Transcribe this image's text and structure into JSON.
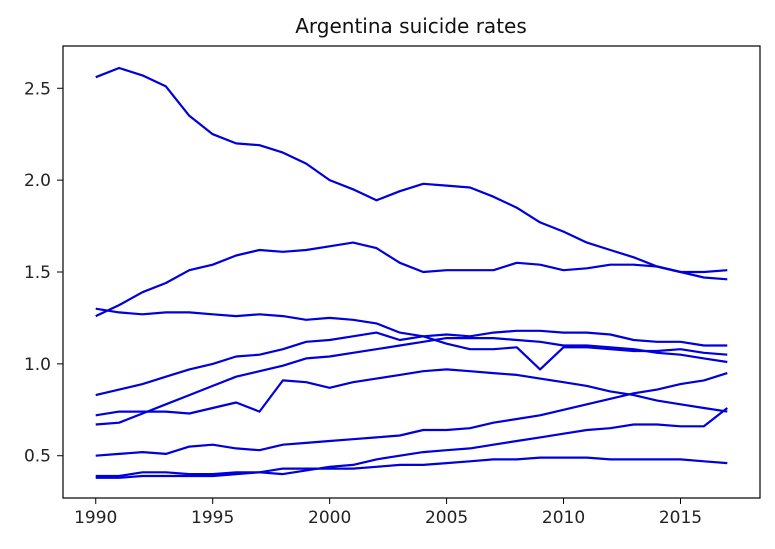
{
  "chart_data": {
    "type": "line",
    "title": "Argentina suicide rates",
    "xlabel": "",
    "ylabel": "",
    "xlim": [
      1988.6,
      2018.4
    ],
    "ylim": [
      0.27,
      2.73
    ],
    "xticks": [
      1990,
      1995,
      2000,
      2005,
      2010,
      2015
    ],
    "yticks": [
      0.5,
      1.0,
      1.5,
      2.0,
      2.5
    ],
    "ytick_labels": [
      "0.5",
      "1.0",
      "1.5",
      "2.0",
      "2.5"
    ],
    "grid": false,
    "legend": "none",
    "line_color": "#0000dd",
    "x": [
      1990,
      1991,
      1992,
      1993,
      1994,
      1995,
      1996,
      1997,
      1998,
      1999,
      2000,
      2001,
      2002,
      2003,
      2004,
      2005,
      2006,
      2007,
      2008,
      2009,
      2010,
      2011,
      2012,
      2013,
      2014,
      2015,
      2016,
      2017
    ],
    "series": [
      {
        "values": [
          2.56,
          2.61,
          2.57,
          2.51,
          2.35,
          2.25,
          2.2,
          2.19,
          2.15,
          2.09,
          2.0,
          1.95,
          1.89,
          1.94,
          1.98,
          1.97,
          1.96,
          1.91,
          1.85,
          1.77,
          1.72,
          1.66,
          1.62,
          1.58,
          1.53,
          1.5,
          1.47,
          1.46
        ]
      },
      {
        "values": [
          1.26,
          1.32,
          1.39,
          1.44,
          1.51,
          1.54,
          1.59,
          1.62,
          1.61,
          1.62,
          1.64,
          1.66,
          1.63,
          1.55,
          1.5,
          1.51,
          1.51,
          1.51,
          1.55,
          1.54,
          1.51,
          1.52,
          1.54,
          1.54,
          1.53,
          1.5,
          1.5,
          1.51
        ]
      },
      {
        "values": [
          1.3,
          1.28,
          1.27,
          1.28,
          1.28,
          1.27,
          1.26,
          1.27,
          1.26,
          1.24,
          1.25,
          1.24,
          1.22,
          1.17,
          1.15,
          1.11,
          1.08,
          1.08,
          1.09,
          0.97,
          1.09,
          1.09,
          1.08,
          1.07,
          1.07,
          1.08,
          1.06,
          1.05
        ]
      },
      {
        "values": [
          0.83,
          0.86,
          0.89,
          0.93,
          0.97,
          1.0,
          1.04,
          1.05,
          1.08,
          1.12,
          1.13,
          1.15,
          1.17,
          1.13,
          1.15,
          1.16,
          1.15,
          1.17,
          1.18,
          1.18,
          1.17,
          1.17,
          1.16,
          1.13,
          1.12,
          1.12,
          1.1,
          1.1
        ]
      },
      {
        "values": [
          0.72,
          0.74,
          0.74,
          0.74,
          0.73,
          0.76,
          0.79,
          0.74,
          0.91,
          0.9,
          0.87,
          0.9,
          0.92,
          0.94,
          0.96,
          0.97,
          0.96,
          0.95,
          0.94,
          0.92,
          0.9,
          0.88,
          0.85,
          0.83,
          0.8,
          0.78,
          0.76,
          0.74
        ]
      },
      {
        "values": [
          0.67,
          0.68,
          0.73,
          0.78,
          0.83,
          0.88,
          0.93,
          0.96,
          0.99,
          1.03,
          1.04,
          1.06,
          1.08,
          1.1,
          1.12,
          1.14,
          1.14,
          1.14,
          1.13,
          1.12,
          1.1,
          1.1,
          1.09,
          1.08,
          1.06,
          1.05,
          1.03,
          1.01
        ]
      },
      {
        "values": [
          0.5,
          0.51,
          0.52,
          0.51,
          0.55,
          0.56,
          0.54,
          0.53,
          0.56,
          0.57,
          0.58,
          0.59,
          0.6,
          0.61,
          0.64,
          0.64,
          0.65,
          0.68,
          0.7,
          0.72,
          0.75,
          0.78,
          0.81,
          0.84,
          0.86,
          0.89,
          0.91,
          0.95
        ]
      },
      {
        "values": [
          0.39,
          0.39,
          0.41,
          0.41,
          0.4,
          0.4,
          0.41,
          0.41,
          0.4,
          0.42,
          0.44,
          0.45,
          0.48,
          0.5,
          0.52,
          0.53,
          0.54,
          0.56,
          0.58,
          0.6,
          0.62,
          0.64,
          0.65,
          0.67,
          0.67,
          0.66,
          0.66,
          0.76
        ]
      },
      {
        "values": [
          0.38,
          0.38,
          0.39,
          0.39,
          0.39,
          0.39,
          0.4,
          0.41,
          0.43,
          0.43,
          0.43,
          0.43,
          0.44,
          0.45,
          0.45,
          0.46,
          0.47,
          0.48,
          0.48,
          0.49,
          0.49,
          0.49,
          0.48,
          0.48,
          0.48,
          0.48,
          0.47,
          0.46
        ]
      }
    ]
  }
}
